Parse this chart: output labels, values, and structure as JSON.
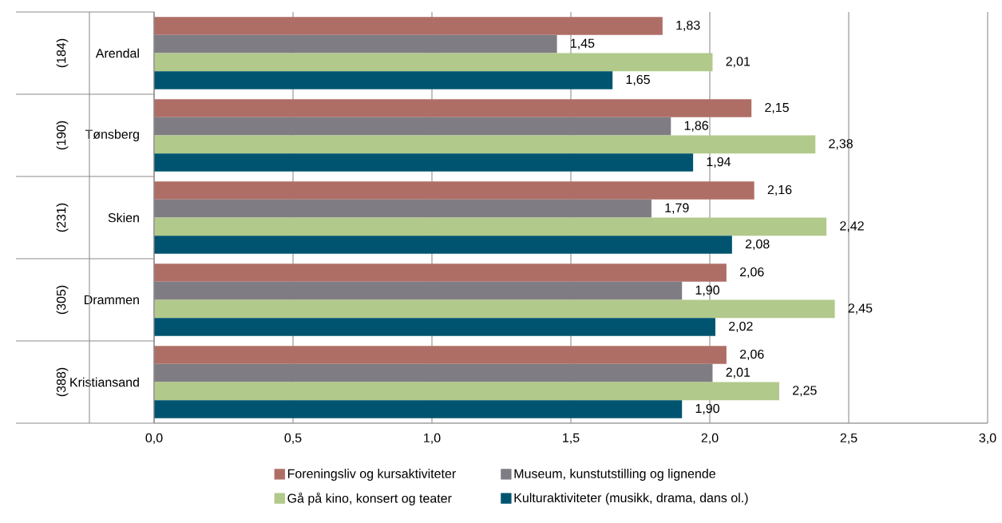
{
  "chart_data": {
    "type": "bar",
    "orientation": "horizontal",
    "categories": [
      "Arendal",
      "Tønsberg",
      "Skien",
      "Drammen",
      "Kristiansand"
    ],
    "annotations": [
      "(184)",
      "(190)",
      "(231)",
      "(305)",
      "(388)"
    ],
    "series": [
      {
        "name": "Foreningsliv og kursaktiviteter",
        "color": "#ae6e66",
        "values": [
          1.83,
          2.15,
          2.16,
          2.06,
          2.06
        ],
        "value_labels": [
          "1,83",
          "2,15",
          "2,16",
          "2,06",
          "2,06"
        ]
      },
      {
        "name": "Museum, kunstutstilling og lignende",
        "color": "#7f7d83",
        "values": [
          1.45,
          1.86,
          1.79,
          1.9,
          2.01
        ],
        "value_labels": [
          "1,45",
          "1,86",
          "1,79",
          "1,90",
          "2,01"
        ]
      },
      {
        "name": "Gå på kino, konsert og teater",
        "color": "#b1c98a",
        "values": [
          2.01,
          2.38,
          2.42,
          2.45,
          2.25
        ],
        "value_labels": [
          "2,01",
          "2,38",
          "2,42",
          "2,45",
          "2,25"
        ]
      },
      {
        "name": "Kulturaktiviteter (musikk, drama, dans ol.)",
        "color": "#00546f",
        "values": [
          1.65,
          1.94,
          2.08,
          2.02,
          1.9
        ],
        "value_labels": [
          "1,65",
          "1,94",
          "2,08",
          "2,02",
          "1,90"
        ]
      }
    ],
    "xlim": [
      0,
      3.0
    ],
    "xticks": [
      {
        "value": 0,
        "label": "0,0"
      },
      {
        "value": 0.5,
        "label": "0,5"
      },
      {
        "value": 1.0,
        "label": "1,0"
      },
      {
        "value": 1.5,
        "label": "1,5"
      },
      {
        "value": 2.0,
        "label": "2,0"
      },
      {
        "value": 2.5,
        "label": "2,5"
      },
      {
        "value": 3.0,
        "label": "3,0"
      }
    ],
    "grid": "x",
    "legend": "bottom"
  }
}
